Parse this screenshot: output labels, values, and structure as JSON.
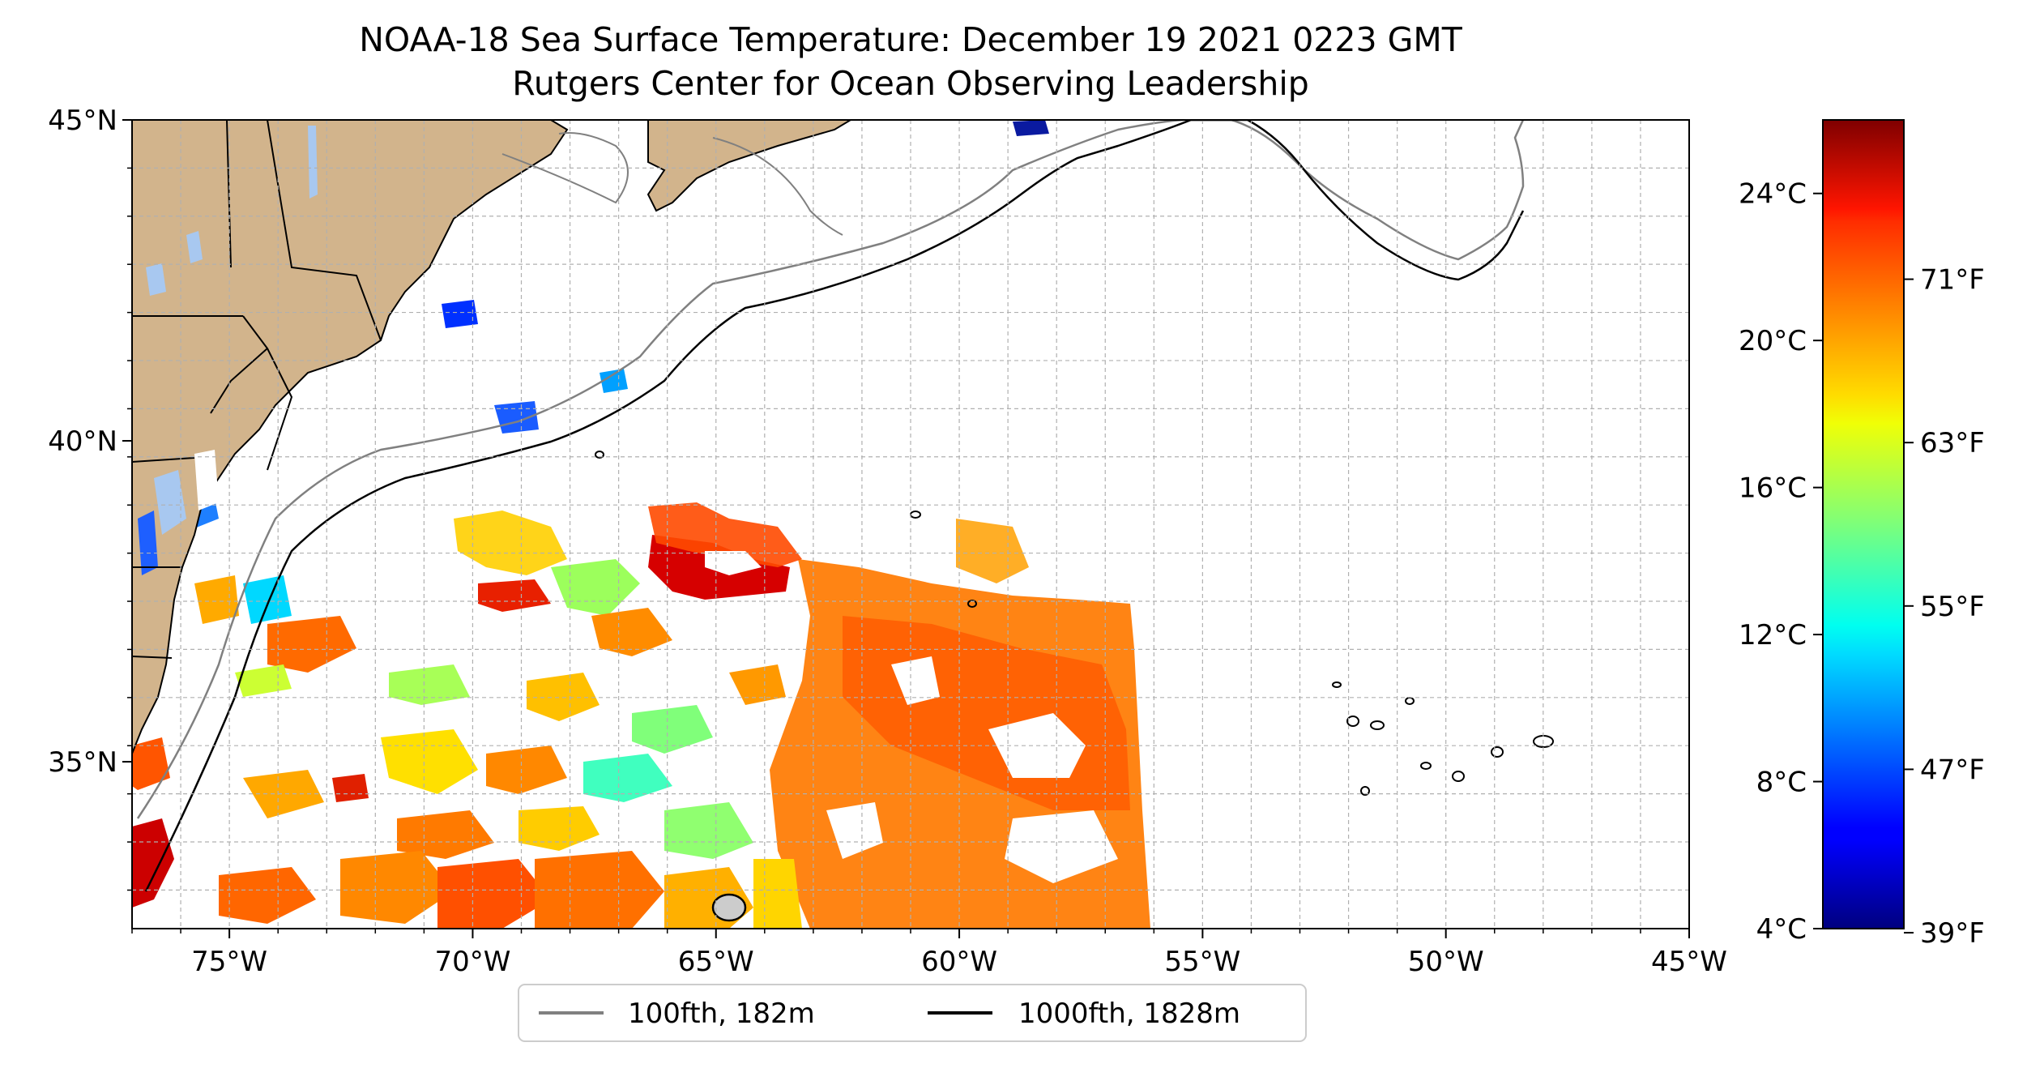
{
  "title": {
    "line1": "NOAA-18 Sea Surface Temperature: December 19 2021 0223 GMT",
    "line2": "Rutgers Center for Ocean Observing Leadership"
  },
  "map": {
    "lon_range": [
      -77,
      -45
    ],
    "lat_range": [
      32.4,
      45
    ],
    "x_ticks": [
      {
        "lon": -75,
        "label": "75°W"
      },
      {
        "lon": -70,
        "label": "70°W"
      },
      {
        "lon": -65,
        "label": "65°W"
      },
      {
        "lon": -60,
        "label": "60°W"
      },
      {
        "lon": -55,
        "label": "55°W"
      },
      {
        "lon": -50,
        "label": "50°W"
      },
      {
        "lon": -45,
        "label": "45°W"
      }
    ],
    "y_ticks": [
      {
        "lat": 45,
        "label": "45°N"
      },
      {
        "lat": 40,
        "label": "40°N"
      },
      {
        "lat": 35,
        "label": "35°N"
      }
    ],
    "gridlines": true,
    "land_color": "#d2b48c",
    "ocean_color": "#ffffff"
  },
  "legend": {
    "placement": "bottom-center",
    "items": [
      {
        "label": "100fth, 182m",
        "color": "#808080"
      },
      {
        "label": "1000fth, 1828m",
        "color": "#000000"
      }
    ]
  },
  "colorbar": {
    "colormap": "jet",
    "range_c": [
      4,
      26
    ],
    "celsius_ticks": [
      {
        "value": 4,
        "label": "4°C"
      },
      {
        "value": 8,
        "label": "8°C"
      },
      {
        "value": 12,
        "label": "12°C"
      },
      {
        "value": 16,
        "label": "16°C"
      },
      {
        "value": 20,
        "label": "20°C"
      },
      {
        "value": 24,
        "label": "24°C"
      }
    ],
    "fahrenheit_ticks": [
      {
        "value": 39,
        "label": "39°F"
      },
      {
        "value": 47,
        "label": "47°F"
      },
      {
        "value": 55,
        "label": "55°F"
      },
      {
        "value": 63,
        "label": "63°F"
      },
      {
        "value": 71,
        "label": "71°F"
      }
    ]
  }
}
